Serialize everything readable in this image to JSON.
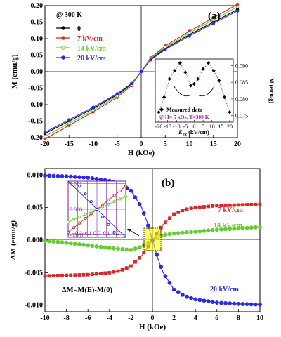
{
  "colors": {
    "s0": "#000000",
    "s7": "#d12a2a",
    "s14": "#66cc33",
    "s20": "#2a2ae0",
    "magenta": "#a01fa0",
    "purple": "#7a1fa0"
  },
  "chart_data": [
    {
      "id": "a",
      "type": "line",
      "panel_label": "(a)",
      "title": "",
      "annotation": "@ 300 K",
      "xlabel": "H (kOe)",
      "ylabel": "M (emu/g)",
      "xlim": [
        -20,
        20
      ],
      "ylim": [
        -0.2,
        0.2
      ],
      "xticks": [
        "-20",
        "-15",
        "-10",
        "-5",
        "0",
        "5",
        "10",
        "15",
        "20"
      ],
      "yticks": [
        "-0.20",
        "-0.15",
        "-0.10",
        "-0.05",
        "0.00",
        "0.05",
        "0.10",
        "0.15",
        "0.20"
      ],
      "legend_position": "top-left",
      "series": [
        {
          "name": "0",
          "color": "#000000",
          "x": [
            -20,
            -15,
            -10,
            -5,
            -2,
            0,
            2,
            5,
            10,
            15,
            20
          ],
          "y": [
            -0.188,
            -0.15,
            -0.112,
            -0.07,
            -0.038,
            0.0,
            0.038,
            0.07,
            0.112,
            0.15,
            0.188
          ]
        },
        {
          "name": "7  kV/cm",
          "color": "#d12a2a",
          "x": [
            -20,
            -15,
            -10,
            -5,
            -2,
            0,
            2,
            5,
            10,
            15,
            20
          ],
          "y": [
            -0.204,
            -0.163,
            -0.122,
            -0.078,
            -0.042,
            0.0,
            0.042,
            0.078,
            0.122,
            0.163,
            0.204
          ]
        },
        {
          "name": "14 kV/cm",
          "color": "#66cc33",
          "x": [
            -20,
            -15,
            -10,
            -5,
            -2,
            0,
            2,
            5,
            10,
            15,
            20
          ],
          "y": [
            -0.196,
            -0.157,
            -0.117,
            -0.074,
            -0.04,
            0.0,
            0.04,
            0.074,
            0.117,
            0.157,
            0.196
          ]
        },
        {
          "name": "20 kV/cm",
          "color": "#2a2ae0",
          "x": [
            -20,
            -15,
            -10,
            -5,
            -2,
            0,
            2,
            5,
            10,
            15,
            20
          ],
          "y": [
            -0.184,
            -0.146,
            -0.108,
            -0.067,
            -0.036,
            0.0,
            0.036,
            0.067,
            0.108,
            0.146,
            0.184
          ]
        }
      ],
      "inset": {
        "type": "scatter",
        "xlabel": "E",
        "xlabel_sub": "ex",
        "xlabel_unit": " (kV/cm)",
        "ylabel": "M (emu/g)",
        "xlim": [
          -22,
          22
        ],
        "ylim": [
          0.073,
          0.092
        ],
        "xticks": [
          "-20",
          "-15",
          "-10",
          "-5",
          "0",
          "5",
          "10",
          "15",
          "20"
        ],
        "yticks": [
          "0.075",
          "0.080",
          "0.085",
          "0.090"
        ],
        "legend": "Measured data",
        "note": "@ H= 5 kOe, T=300 K",
        "x": [
          -20,
          -17,
          -14,
          -11,
          -8,
          -5,
          -2,
          0,
          2,
          5,
          8,
          11,
          14,
          17,
          20
        ],
        "y": [
          0.076,
          0.0805,
          0.086,
          0.0885,
          0.0908,
          0.088,
          0.084,
          0.0845,
          0.086,
          0.089,
          0.0908,
          0.0885,
          0.0855,
          0.0805,
          0.076
        ]
      }
    },
    {
      "id": "b",
      "type": "line",
      "panel_label": "(b)",
      "title": "",
      "annotation": "ΔM=M(E)-M(0)",
      "xlabel": "H (kOe)",
      "ylabel": "ΔM (emu/g)",
      "xlim": [
        -10,
        10
      ],
      "ylim": [
        -0.011,
        0.011
      ],
      "xticks": [
        "-10",
        "-8",
        "-6",
        "-4",
        "-2",
        "0",
        "2",
        "4",
        "6",
        "8",
        "10"
      ],
      "yticks": [
        "-0.010",
        "-0.005",
        "0.000",
        "0.005",
        "0.010"
      ],
      "series": [
        {
          "name": "7 kV/cm",
          "color": "#d12a2a",
          "x": [
            -10,
            -8,
            -6,
            -4,
            -3,
            -2,
            -1,
            -0.5,
            0,
            0.5,
            1,
            2,
            3,
            4,
            6,
            8,
            10
          ],
          "y": [
            -0.0055,
            -0.0054,
            -0.0053,
            -0.005,
            -0.0047,
            -0.004,
            -0.0024,
            -0.0012,
            0.0,
            0.0012,
            0.0024,
            0.004,
            0.0047,
            0.005,
            0.0053,
            0.0054,
            0.0055
          ]
        },
        {
          "name": "14 kV/cm",
          "color": "#66cc33",
          "x": [
            -10,
            -8,
            -6,
            -4,
            -2,
            -1,
            0,
            1,
            2,
            4,
            6,
            8,
            10
          ],
          "y": [
            -0.0001,
            -0.0004,
            -0.0008,
            -0.0012,
            -0.0015,
            -0.001,
            0.0,
            0.0008,
            0.001,
            0.0013,
            0.0016,
            0.0018,
            0.002
          ]
        },
        {
          "name": "20 kV/cm",
          "color": "#2a2ae0",
          "x": [
            -10,
            -8,
            -6,
            -4,
            -3,
            -2,
            -1,
            -0.5,
            0,
            0.5,
            1,
            2,
            3,
            4,
            6,
            8,
            10
          ],
          "y": [
            0.0099,
            0.0098,
            0.0096,
            0.0091,
            0.0086,
            0.0076,
            0.005,
            0.0028,
            0.0,
            -0.0028,
            -0.005,
            -0.0076,
            -0.0086,
            -0.0091,
            -0.0096,
            -0.0098,
            -0.0099
          ]
        }
      ],
      "inset": {
        "type": "line",
        "xlim": [
          -0.3,
          0.3
        ],
        "ylim": [
          -0.0011,
          0.0011
        ],
        "xticks": [
          "-0.2",
          "-0.1",
          "0.0",
          "0.1",
          "0.2"
        ],
        "yticks": [
          "0.001",
          "0.000",
          "-0.001"
        ],
        "series": [
          {
            "color": "#d12a2a",
            "x": [
              -0.3,
              0.3
            ],
            "y": [
              -0.0009,
              0.0009
            ]
          },
          {
            "color": "#66cc33",
            "x": [
              -0.3,
              0.3
            ],
            "y": [
              -0.0005,
              0.0005
            ]
          },
          {
            "color": "#2a2ae0",
            "x": [
              -0.3,
              0.3
            ],
            "y": [
              0.0015,
              -0.0015
            ]
          }
        ]
      }
    }
  ]
}
